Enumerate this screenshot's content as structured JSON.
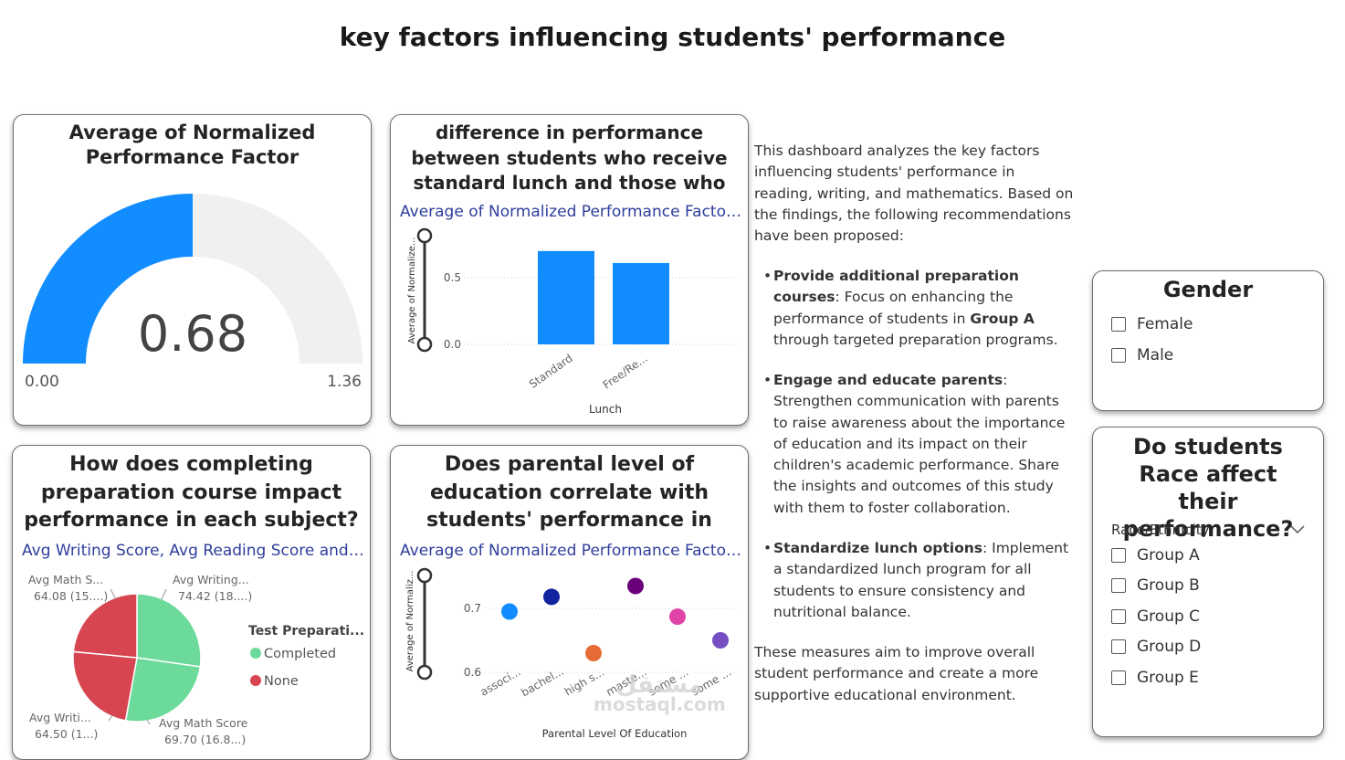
{
  "page_title": "key factors influencing students' performance",
  "gauge_card": {
    "title": "Average of Normalized Performance Factor",
    "value_label": "0.68",
    "min_label": "0.00",
    "max_label": "1.36",
    "value": 0.68,
    "min": 0,
    "max": 1.36,
    "fill_color": "#118DFF",
    "track_color": "#F0F0F0"
  },
  "lunch_card": {
    "title": "difference in performance between students who receive standard lunch and those who receive free/...",
    "subtitle": "Average of  Normalized Performance Factor...",
    "chart_data": {
      "type": "bar",
      "categories": [
        "Standard",
        "Free/Re..."
      ],
      "values": [
        0.7,
        0.61
      ],
      "ylabel": "Average of Normalize...",
      "xlabel": "Lunch",
      "yticks": [
        "0.5",
        "0.0"
      ],
      "ylim": [
        0,
        0.8
      ],
      "bar_color": "#118DFF"
    }
  },
  "prep_card": {
    "title": "How does completing preparation course impact performance in each subject?",
    "subtitle": "Avg Writing Score, Avg Reading Score and ...",
    "legend_title": "Test Preparati...",
    "chart_data": {
      "type": "pie",
      "series": [
        {
          "name": "Completed",
          "color": "#6CDA9A",
          "slices": [
            {
              "label": "Avg Writing...",
              "value_label": "74.42 (18....)",
              "value": 74.42
            },
            {
              "label": "Avg Math Score",
              "value_label": "69.70 (16.8...)",
              "value": 69.7
            }
          ]
        },
        {
          "name": "None",
          "color": "#D64550",
          "slices": [
            {
              "label": "Avg Writi...",
              "value_label": "64.50 (1...)",
              "value": 64.5
            },
            {
              "label": "Avg Math S...",
              "value_label": "64.08 (15....)",
              "value": 64.08
            }
          ]
        }
      ]
    }
  },
  "parent_card": {
    "title": "Does parental level of education correlate with students' performance in exa...",
    "subtitle": "Average of  Normalized Performance Factor...",
    "chart_data": {
      "type": "scatter",
      "xlabel": "Parental Level Of Education",
      "ylabel": "Average of Normaliz...",
      "yticks": [
        "0.7",
        "0.6"
      ],
      "ylim": [
        0.57,
        0.76
      ],
      "categories": [
        "associ...",
        "bachel...",
        "high s...",
        "maste...",
        "some ...",
        "some ..."
      ],
      "values": [
        0.695,
        0.718,
        0.63,
        0.735,
        0.687,
        0.65
      ],
      "colors": [
        "#118DFF",
        "#12239E",
        "#E66C37",
        "#6B007B",
        "#E044A7",
        "#744EC2"
      ]
    }
  },
  "description": {
    "intro": "This dashboard analyzes the key factors influencing students' performance in reading, writing, and mathematics. Based on the findings, the following recommendations have been proposed:",
    "bullets": [
      {
        "bold": "Provide additional preparation courses",
        "rest_before": ": Focus on enhancing the performance of students in ",
        "bold2": "Group A",
        "rest_after": " through targeted preparation programs."
      },
      {
        "bold": "Engage and educate parents",
        "rest_before": ": Strengthen communication with parents to raise awareness about the importance of education and its impact on their children's academic performance. Share the insights and outcomes of this study with them to foster collaboration.",
        "bold2": "",
        "rest_after": ""
      },
      {
        "bold": "Standardize lunch options",
        "rest_before": ": Implement a standardized lunch program for all students to ensure consistency and nutritional balance.",
        "bold2": "",
        "rest_after": ""
      }
    ],
    "conclusion": "These measures aim to improve overall student performance and create a more supportive educational environment."
  },
  "gender_slicer": {
    "title": "Gender",
    "options": [
      "Female",
      "Male"
    ]
  },
  "race_slicer": {
    "title": "Do students Race affect their performance?",
    "field": "Race/Ethnicity",
    "options": [
      "Group A",
      "Group B",
      "Group C",
      "Group D",
      "Group E"
    ]
  },
  "watermark": {
    "text": "مستقل",
    "url": "mostaql.com"
  }
}
